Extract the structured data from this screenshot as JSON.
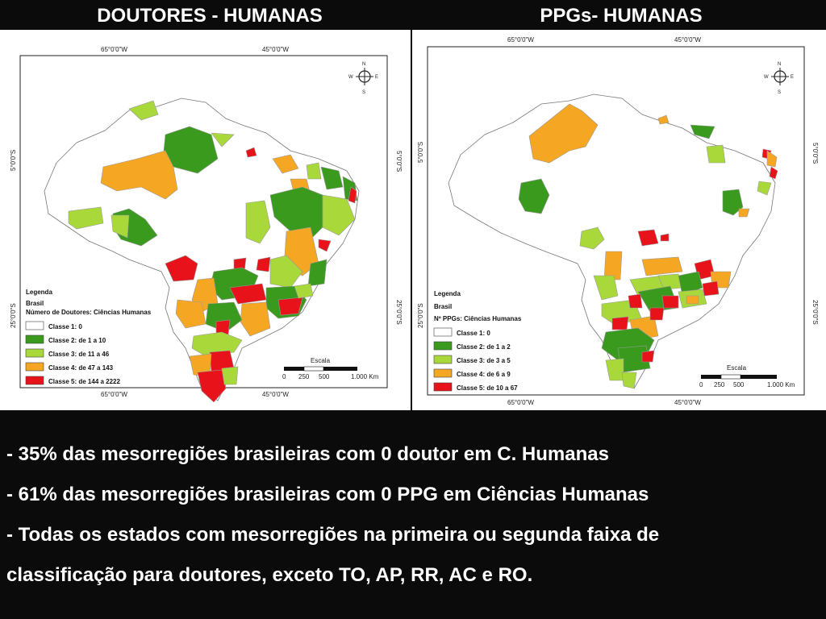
{
  "titles": {
    "left": "DOUTORES - HUMANAS",
    "right": "PPGs- HUMANAS"
  },
  "map_left": {
    "coords": {
      "top_lon_1": "65°0'0\"W",
      "top_lon_2": "45°0'0\"W",
      "bottom_lon_1": "65°0'0\"W",
      "bottom_lon_2": "45°0'0\"W",
      "lat_1_left": "5°0'0\"S",
      "lat_1_right": "5°0'0\"S",
      "lat_2_left": "25°0'0\"S",
      "lat_2_right": "25°0'0\"S"
    },
    "legend": {
      "title": "Legenda",
      "layer": "Brasil",
      "variable": "Número de Doutores: Ciências Humanas",
      "classes": [
        {
          "label": "Classe 1: 0",
          "color": "#ffffff"
        },
        {
          "label": "Classe 2: de 1 a 10",
          "color": "#3a9a1e"
        },
        {
          "label": "Classe 3: de 11 a 46",
          "color": "#a8d83a"
        },
        {
          "label": "Classe 4: de 47 a 143",
          "color": "#f5a623"
        },
        {
          "label": "Classe 5: de 144 a 2222",
          "color": "#e8121a"
        }
      ]
    },
    "scale": {
      "title": "Escala",
      "ticks": [
        "0",
        "250",
        "500",
        "1.000 Km"
      ]
    },
    "compass": {
      "n": "N",
      "s": "S",
      "e": "E",
      "w": "W"
    }
  },
  "map_right": {
    "coords": {
      "top_lon_1": "65°0'0\"W",
      "top_lon_2": "45°0'0\"W",
      "bottom_lon_1": "65°0'0\"W",
      "bottom_lon_2": "45°0'0\"W",
      "lat_1_left": "5°0'0\"S",
      "lat_1_right": "5°0'0\"S",
      "lat_2_left": "25°0'0\"S",
      "lat_2_right": "25°0'0\"S"
    },
    "legend": {
      "title": "Legenda",
      "layer": "Brasil",
      "variable": "Nº PPGs: Ciências Humanas",
      "classes": [
        {
          "label": "Classe 1: 0",
          "color": "#ffffff"
        },
        {
          "label": "Classe 2: de 1 a 2",
          "color": "#3a9a1e"
        },
        {
          "label": "Classe 3: de 3 a 5",
          "color": "#a8d83a"
        },
        {
          "label": "Classe 4: de 6 a 9",
          "color": "#f5a623"
        },
        {
          "label": "Classe 5: de 10 a 67",
          "color": "#e8121a"
        }
      ]
    },
    "scale": {
      "title": "Escala",
      "ticks": [
        "0",
        "250",
        "500",
        "1.000 Km"
      ]
    },
    "compass": {
      "n": "N",
      "s": "S",
      "e": "E",
      "w": "W"
    }
  },
  "bullets": [
    "- 35% das mesorregiões brasileiras com 0 doutor em C. Humanas",
    "- 61% das mesorregiões brasileiras com 0 PPG em Ciências Humanas",
    "- Todas os estados com mesorregiões na primeira ou segunda faixa de",
    "classificação para doutores, exceto TO, AP, RR, AC e RO."
  ]
}
